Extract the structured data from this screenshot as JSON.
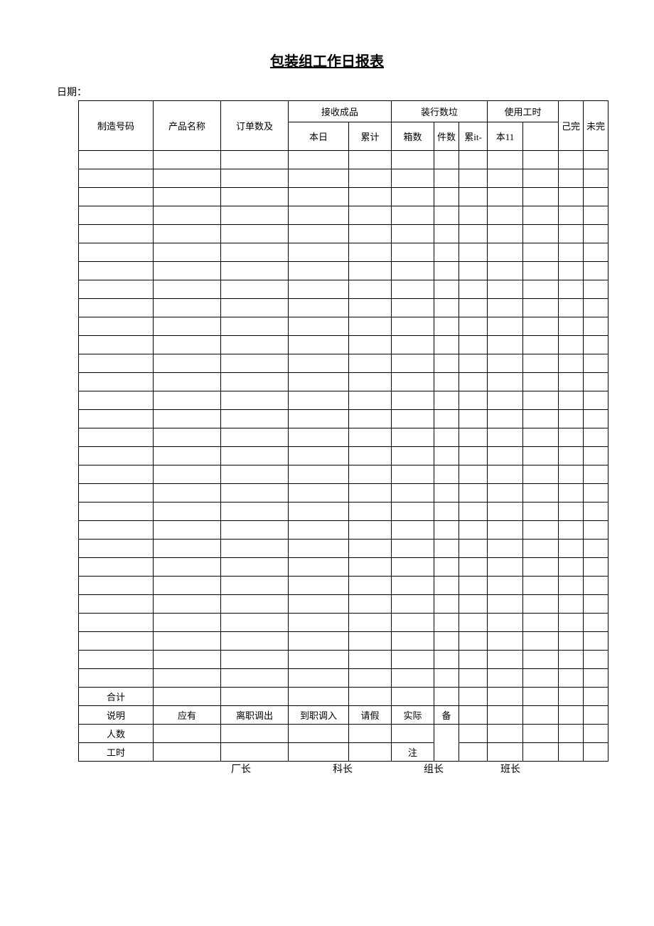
{
  "title": "包装组工作日报表",
  "date_label": "日期：",
  "headers": {
    "col1": "制造号码",
    "col2": "产品名称",
    "col3": "订单数及",
    "group_received": "接收成品",
    "received_today": "本日",
    "received_total": "累计",
    "group_packed": "装行数垃",
    "packed_boxes": "箱数",
    "packed_pieces": "件数",
    "packed_total": "累it-",
    "group_hours": "使用工时",
    "hours_main": "本11",
    "done": "己完",
    "undone": "未完"
  },
  "footer_rows": {
    "total": "合计",
    "explain": "说明",
    "should_have": "应有",
    "resign_out": "离职调出",
    "onboard_in": "到职调入",
    "leave": "请假",
    "actual": "实际",
    "remark": "备",
    "remark2": "注",
    "headcount": "人数",
    "workhours": "工时"
  },
  "signatures": {
    "factory_head": "厂长",
    "section_head": "科长",
    "group_head": "组长",
    "shift_head": "班长"
  },
  "empty_rows_count": 29,
  "layout": {
    "col_widths": {
      "c1": 105,
      "c2": 95,
      "c3": 95,
      "c4": 85,
      "c5": 60,
      "c6": 60,
      "c7": 35,
      "c8": 40,
      "c9": 50,
      "c10": 50,
      "c11": 35,
      "c12": 35
    },
    "header_row1_h": 30,
    "header_row2_h": 40,
    "data_row_h": 25,
    "border_color": "#000000",
    "bg": "#ffffff",
    "font_size": 13
  },
  "sign_positions": {
    "factory": 215,
    "section": 115,
    "group": 100,
    "shift": 80
  }
}
